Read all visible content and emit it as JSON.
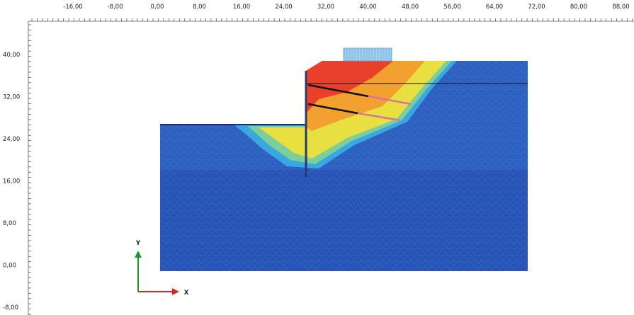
{
  "ruler": {
    "top": {
      "labels": [
        "-16,00",
        "-8,00",
        "0,00",
        "8,00",
        "16,00",
        "24,00",
        "32,00",
        "40,00",
        "48,00",
        "56,00",
        "64,00",
        "72,00",
        "80,00",
        "88,00"
      ]
    },
    "left": {
      "labels": [
        "40,00",
        "32,00",
        "24,00",
        "16,00",
        "8,00",
        "0,00",
        "-8,00"
      ]
    }
  },
  "axes": {
    "y_label": "Y",
    "x_label": "X"
  }
}
